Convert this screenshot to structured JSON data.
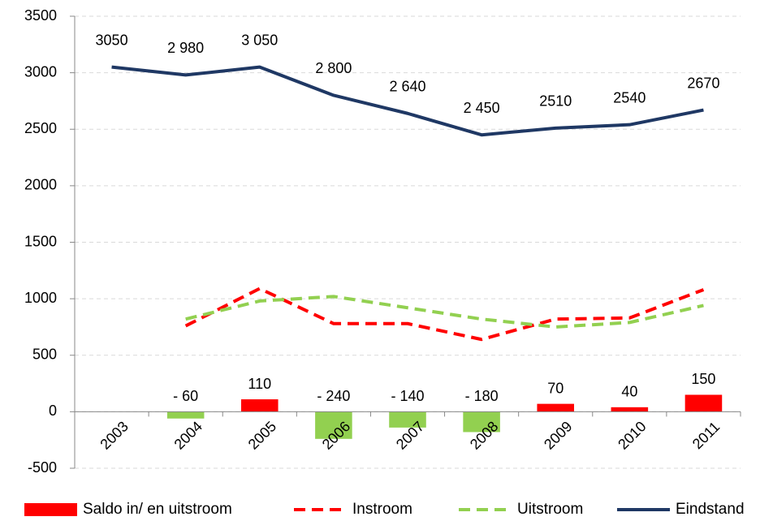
{
  "chart_data": {
    "type": "combo",
    "categories": [
      "2003",
      "2004",
      "2005",
      "2006",
      "2007",
      "2008",
      "2009",
      "2010",
      "2011"
    ],
    "ylim": [
      -500,
      3500
    ],
    "yticks": [
      -500,
      0,
      500,
      1000,
      1500,
      2000,
      2500,
      3000,
      3500
    ],
    "grid": true,
    "legend": "bottom",
    "series": [
      {
        "name": "Saldo in/ en uitstroom",
        "type": "bar",
        "color": "#ff0000",
        "negative_color": "#92d050",
        "values": [
          null,
          -60,
          110,
          -240,
          -140,
          -180,
          70,
          40,
          150
        ],
        "value_labels": [
          null,
          "- 60",
          "110",
          "- 240",
          "- 140",
          "- 180",
          "70",
          "40",
          "150"
        ]
      },
      {
        "name": "Instroom",
        "type": "line",
        "dashed": true,
        "color": "#ff0000",
        "values": [
          null,
          760,
          1090,
          780,
          780,
          640,
          820,
          830,
          1080
        ]
      },
      {
        "name": "Uitstroom",
        "type": "line",
        "dashed": true,
        "color": "#92d050",
        "values": [
          null,
          820,
          980,
          1020,
          920,
          820,
          750,
          790,
          940
        ]
      },
      {
        "name": "Eindstand",
        "type": "line",
        "dashed": false,
        "color": "#1f3864",
        "values": [
          3050,
          2980,
          3050,
          2800,
          2640,
          2450,
          2510,
          2540,
          2670
        ],
        "value_labels": [
          "3050",
          "2 980",
          "3 050",
          "2 800",
          "2 640",
          "2 450",
          "2510",
          "2540",
          "2670"
        ]
      }
    ]
  }
}
